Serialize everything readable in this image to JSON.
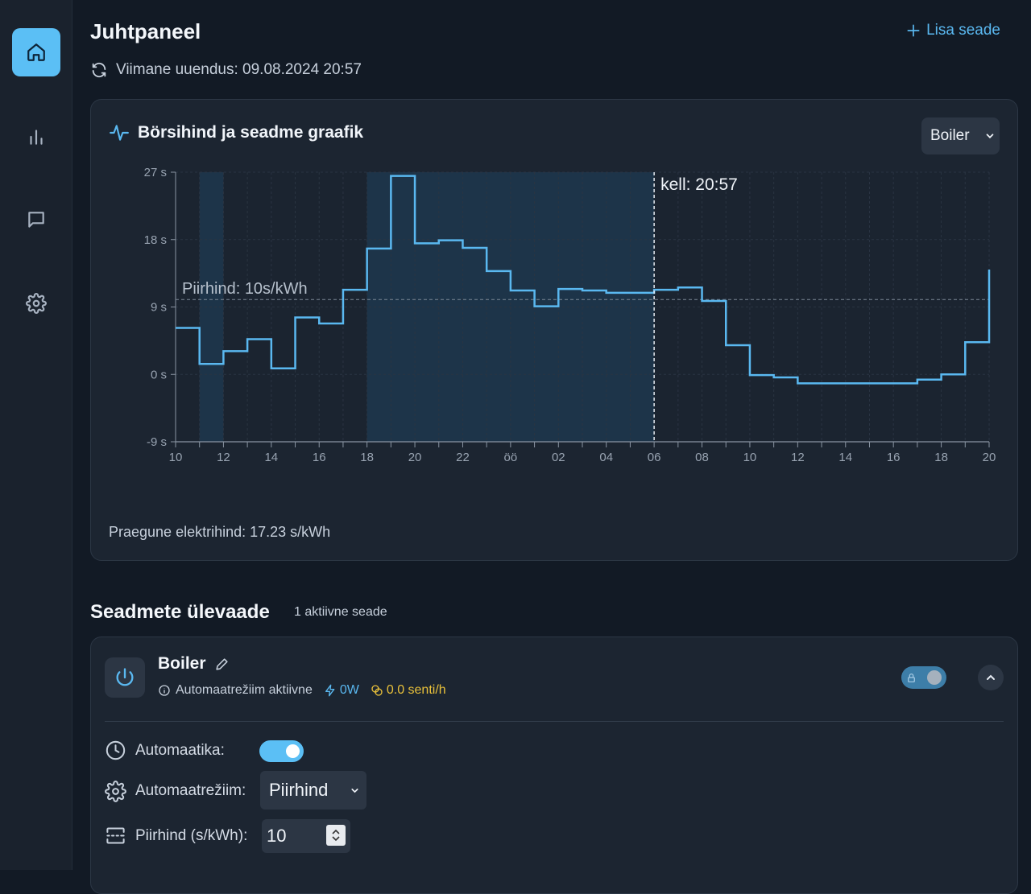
{
  "nav": {
    "items": [
      {
        "name": "home",
        "icon": "home-icon",
        "active": true
      },
      {
        "name": "stats",
        "icon": "bar-chart-icon",
        "active": false
      },
      {
        "name": "messages",
        "icon": "message-icon",
        "active": false
      },
      {
        "name": "settings",
        "icon": "gear-icon",
        "active": false
      }
    ]
  },
  "header": {
    "title": "Juhtpaneel",
    "add_device": "Lisa seade",
    "last_update": "Viimane uuendus: 09.08.2024 20:57"
  },
  "chart_card": {
    "title": "Börsihind ja seadme graafik",
    "device_select": "Boiler",
    "current_price": "Praegune elektrihind: 17.23 s/kWh"
  },
  "chart_data": {
    "type": "line",
    "step": true,
    "title": "Börsihind ja seadme graafik",
    "xlabel": "",
    "ylabel": "",
    "x_hours": [
      10,
      11,
      12,
      13,
      14,
      15,
      16,
      17,
      18,
      19,
      20,
      21,
      22,
      23,
      0,
      1,
      2,
      3,
      4,
      5,
      6,
      7,
      8,
      9,
      10,
      11,
      12,
      13,
      14,
      15,
      16,
      17,
      18,
      19,
      20
    ],
    "x_tick_labels": [
      "10",
      "12",
      "14",
      "16",
      "18",
      "20",
      "22",
      "öö",
      "02",
      "04",
      "06",
      "08",
      "10",
      "12",
      "14",
      "16",
      "18",
      "20"
    ],
    "y_ticks": [
      -9,
      0,
      9,
      18,
      27
    ],
    "y_tick_labels": [
      "-9 s",
      "0 s",
      "9 s",
      "18 s",
      "27 s"
    ],
    "ylim": [
      -9,
      27
    ],
    "values": [
      6.2,
      1.4,
      3.1,
      4.7,
      0.8,
      7.6,
      6.8,
      11.3,
      16.8,
      26.5,
      17.5,
      17.9,
      16.9,
      13.8,
      11.2,
      9.1,
      11.4,
      11.2,
      10.9,
      10.9,
      11.3,
      11.6,
      9.8,
      3.9,
      -0.1,
      -0.4,
      -1.2,
      -1.2,
      -1.2,
      -1.2,
      -1.2,
      -0.7,
      0.0,
      4.3,
      14.0
    ],
    "threshold": 10,
    "threshold_label": "Piirhind: 10s/kWh",
    "now_index": 20,
    "now_label": "kell: 20:57",
    "shaded_ranges": [
      [
        1,
        2
      ],
      [
        8,
        20
      ]
    ],
    "colors": {
      "line": "#5ab8f0",
      "shade": "#1f3a52",
      "threshold": "#7d8896"
    }
  },
  "devices_section": {
    "title": "Seadmete ülevaade",
    "subtitle": "1 aktiivne seade"
  },
  "device": {
    "name": "Boiler",
    "status": "Automaatrežiim aktiivne",
    "power": "0W",
    "cost": "0.0 senti/h",
    "automation_label": "Automaatika:",
    "mode_label": "Automaatrežiim:",
    "mode_value": "Piirhind",
    "threshold_label": "Piirhind (s/kWh):",
    "threshold_value": "10"
  }
}
